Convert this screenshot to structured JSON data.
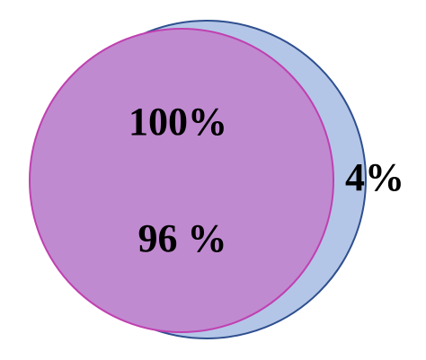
{
  "labels": {
    "outer_total": "100%",
    "inner_share": "96 %",
    "crescent_share": "4%"
  },
  "colors": {
    "outer_fill": "#b4c6e7",
    "outer_stroke": "#2f4f8f",
    "inner_fill": "#c08ad0",
    "inner_stroke": "#c040b0",
    "text": "#000000"
  }
}
